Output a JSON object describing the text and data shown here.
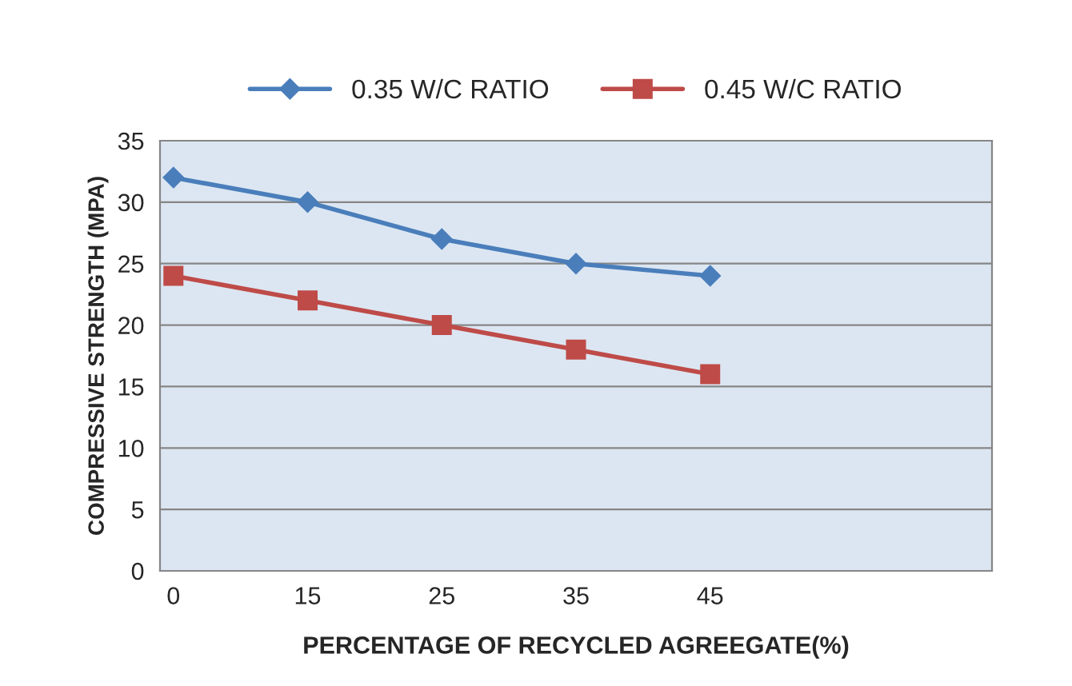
{
  "chart_data": {
    "type": "line",
    "xlabel": "PERCENTAGE OF RECYCLED AGREEGATE(%)",
    "ylabel": "COMPRESSIVE STRENGTH (MPA)",
    "categories": [
      "0",
      "15",
      "25",
      "35",
      "45",
      null,
      null
    ],
    "series": [
      {
        "name": "0.35 W/C RATIO",
        "color": "#4a7ebb",
        "marker": "diamond",
        "values": [
          32,
          30,
          27,
          25,
          24,
          null,
          null
        ]
      },
      {
        "name": "0.45 W/C RATIO",
        "color": "#be4b48",
        "marker": "square",
        "values": [
          24,
          22,
          20,
          18,
          16,
          null,
          null
        ]
      }
    ],
    "ylim": [
      0,
      35
    ],
    "yticks": [
      0,
      5,
      10,
      15,
      20,
      25,
      30,
      35
    ],
    "grid": "y",
    "legend": "top"
  }
}
